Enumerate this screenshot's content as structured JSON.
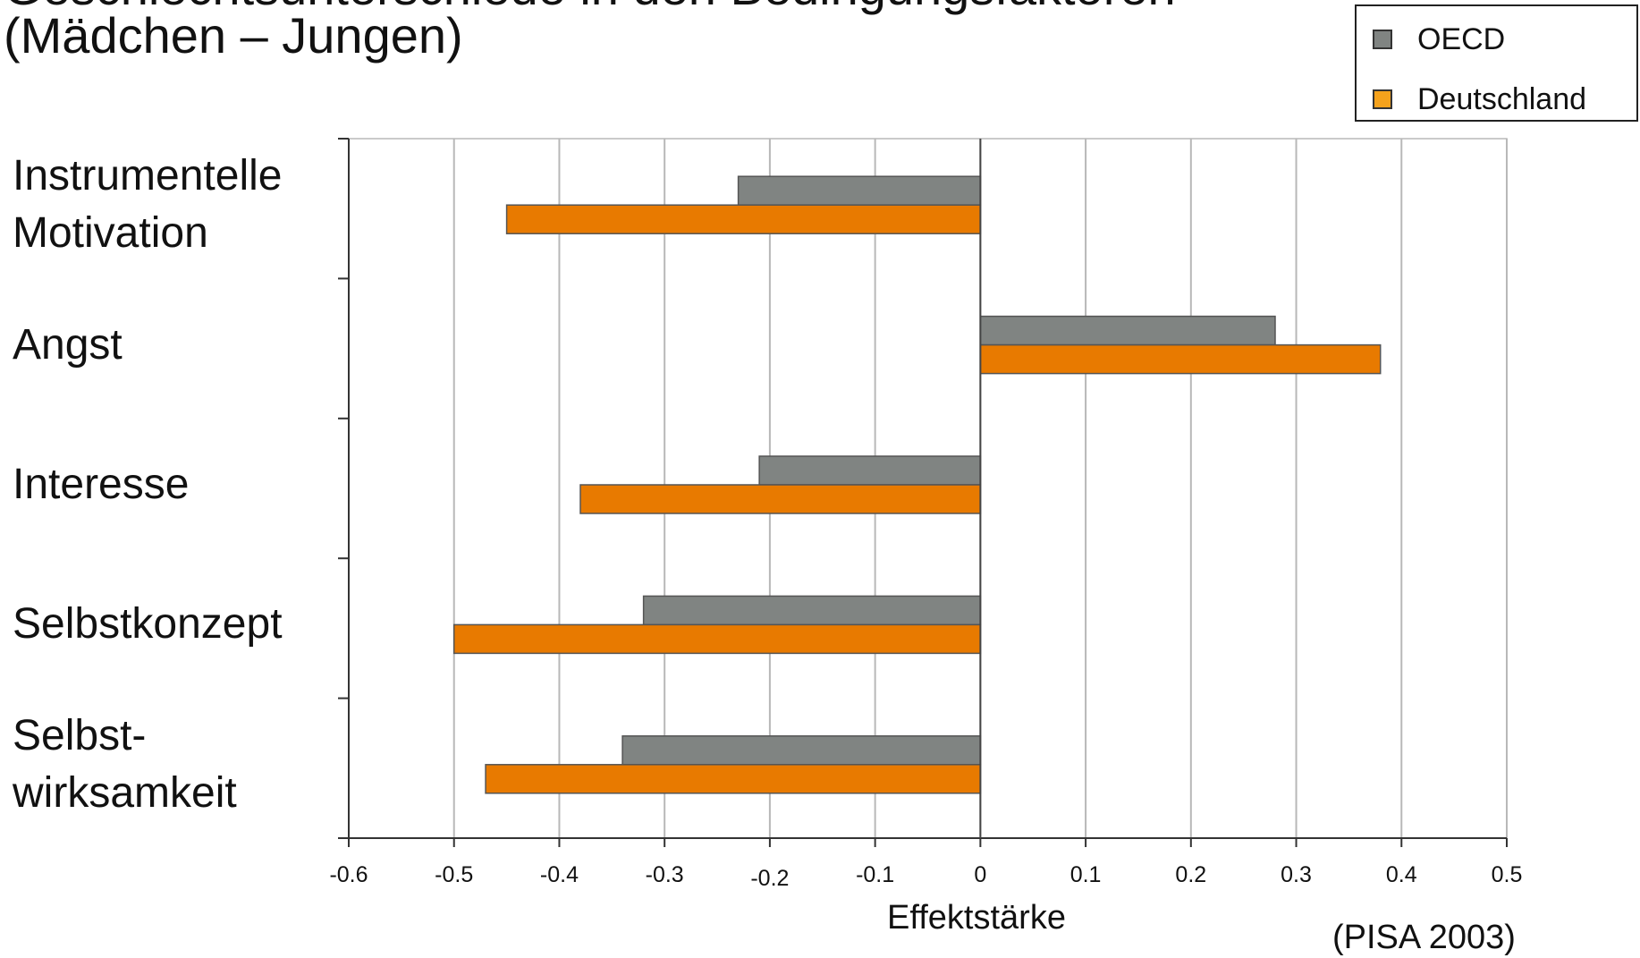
{
  "title": {
    "line1": "Geschlechtsunterschiede in den Bedingungsfaktoren",
    "line2": "(Mädchen – Jungen)"
  },
  "legend": {
    "items": [
      {
        "label": "OECD",
        "color": "#808482"
      },
      {
        "label": "Deutschland",
        "color": "#F5A21C"
      }
    ]
  },
  "source": "(PISA 2003)",
  "chart_data": {
    "type": "bar",
    "orientation": "horizontal",
    "categories": [
      [
        "Instrumentelle",
        "Motivation"
      ],
      [
        "Angst"
      ],
      [
        "Interesse"
      ],
      [
        "Selbstkonzept"
      ],
      [
        "Selbst-",
        "wirksamkeit"
      ]
    ],
    "series": [
      {
        "name": "OECD",
        "color": "#808482",
        "values": [
          -0.23,
          0.28,
          -0.21,
          -0.32,
          -0.34
        ]
      },
      {
        "name": "Deutschland",
        "color": "#E87A00",
        "values": [
          -0.45,
          0.38,
          -0.38,
          -0.5,
          -0.47
        ]
      }
    ],
    "xlabel": "Effektstärke",
    "xlim": [
      -0.6,
      0.5
    ],
    "xticks": [
      "-0.6",
      "-0.5",
      "-0.4",
      "-0.3",
      "-0.2",
      "-0.1",
      "0",
      "0.1",
      "0.2",
      "0.3",
      "0.4",
      "0.5"
    ],
    "grid": "vertical",
    "legend_position": "top-right"
  }
}
